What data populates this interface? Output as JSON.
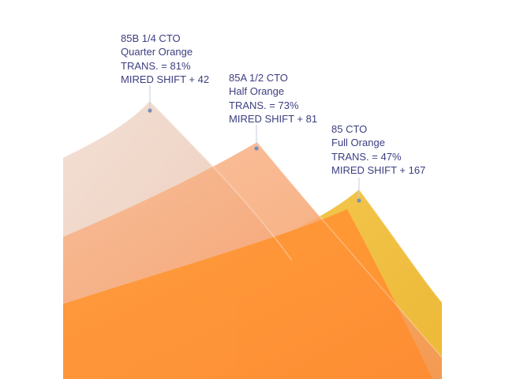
{
  "colors": {
    "background": "#ffffff",
    "label_text": "#3c3e80",
    "leader_dot": "#7a8fb8",
    "leader_line": "#c9cbe0"
  },
  "filters": [
    {
      "name": "85B 1/4 CTO",
      "description": "Quarter Orange",
      "transmission": "TRANS. = 81%",
      "mired_shift": "MIRED SHIFT + 42",
      "sheet_color": "#efd5c6"
    },
    {
      "name": "85A 1/2 CTO",
      "description": "Half Orange",
      "transmission": "TRANS. = 73%",
      "mired_shift": "MIRED SHIFT + 81",
      "sheet_color": "#f6ad7e"
    },
    {
      "name": "85 CTO",
      "description": "Full Orange",
      "transmission": "TRANS. = 47%",
      "mired_shift": "MIRED SHIFT + 167",
      "sheet_color": "#efc243"
    }
  ]
}
